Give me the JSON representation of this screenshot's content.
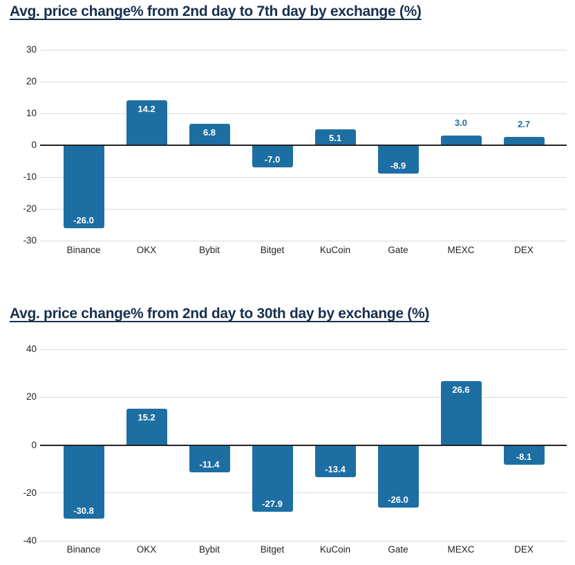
{
  "page": {
    "background": "#ffffff"
  },
  "colors": {
    "bar": "#1d6fa3",
    "title": "#17304e",
    "grid": "#d9d9d9",
    "zero_axis": "#222222",
    "tick_text": "#222222",
    "bar_label_inside": "#ffffff",
    "bar_label_outside": "#1d6fa3"
  },
  "chart_data": [
    {
      "type": "bar",
      "title": "Avg. price change% from 2nd day to 7th day by exchange (%)",
      "categories": [
        "Binance",
        "OKX",
        "Bybit",
        "Bitget",
        "KuCoin",
        "Gate",
        "MEXC",
        "DEX"
      ],
      "values": [
        -26.0,
        14.2,
        6.8,
        -7.0,
        5.1,
        -8.9,
        3.0,
        2.7
      ],
      "value_label_format": "one_decimal",
      "xlabel": "",
      "ylabel": "",
      "ylim": [
        -30,
        30
      ],
      "yticks": [
        30,
        20,
        10,
        0,
        -10,
        -20,
        -30
      ],
      "grid": "horizontal",
      "legend": "none"
    },
    {
      "type": "bar",
      "title": "Avg. price change% from 2nd day to 30th day by exchange (%)",
      "categories": [
        "Binance",
        "OKX",
        "Bybit",
        "Bitget",
        "KuCoin",
        "Gate",
        "MEXC",
        "DEX"
      ],
      "values": [
        -30.8,
        15.2,
        -11.4,
        -27.9,
        -13.4,
        -26.0,
        26.6,
        -8.1
      ],
      "value_label_format": "one_decimal",
      "xlabel": "",
      "ylabel": "",
      "ylim": [
        -40,
        40
      ],
      "yticks": [
        40,
        20,
        0,
        -20,
        -40
      ],
      "grid": "horizontal",
      "legend": "none"
    }
  ]
}
